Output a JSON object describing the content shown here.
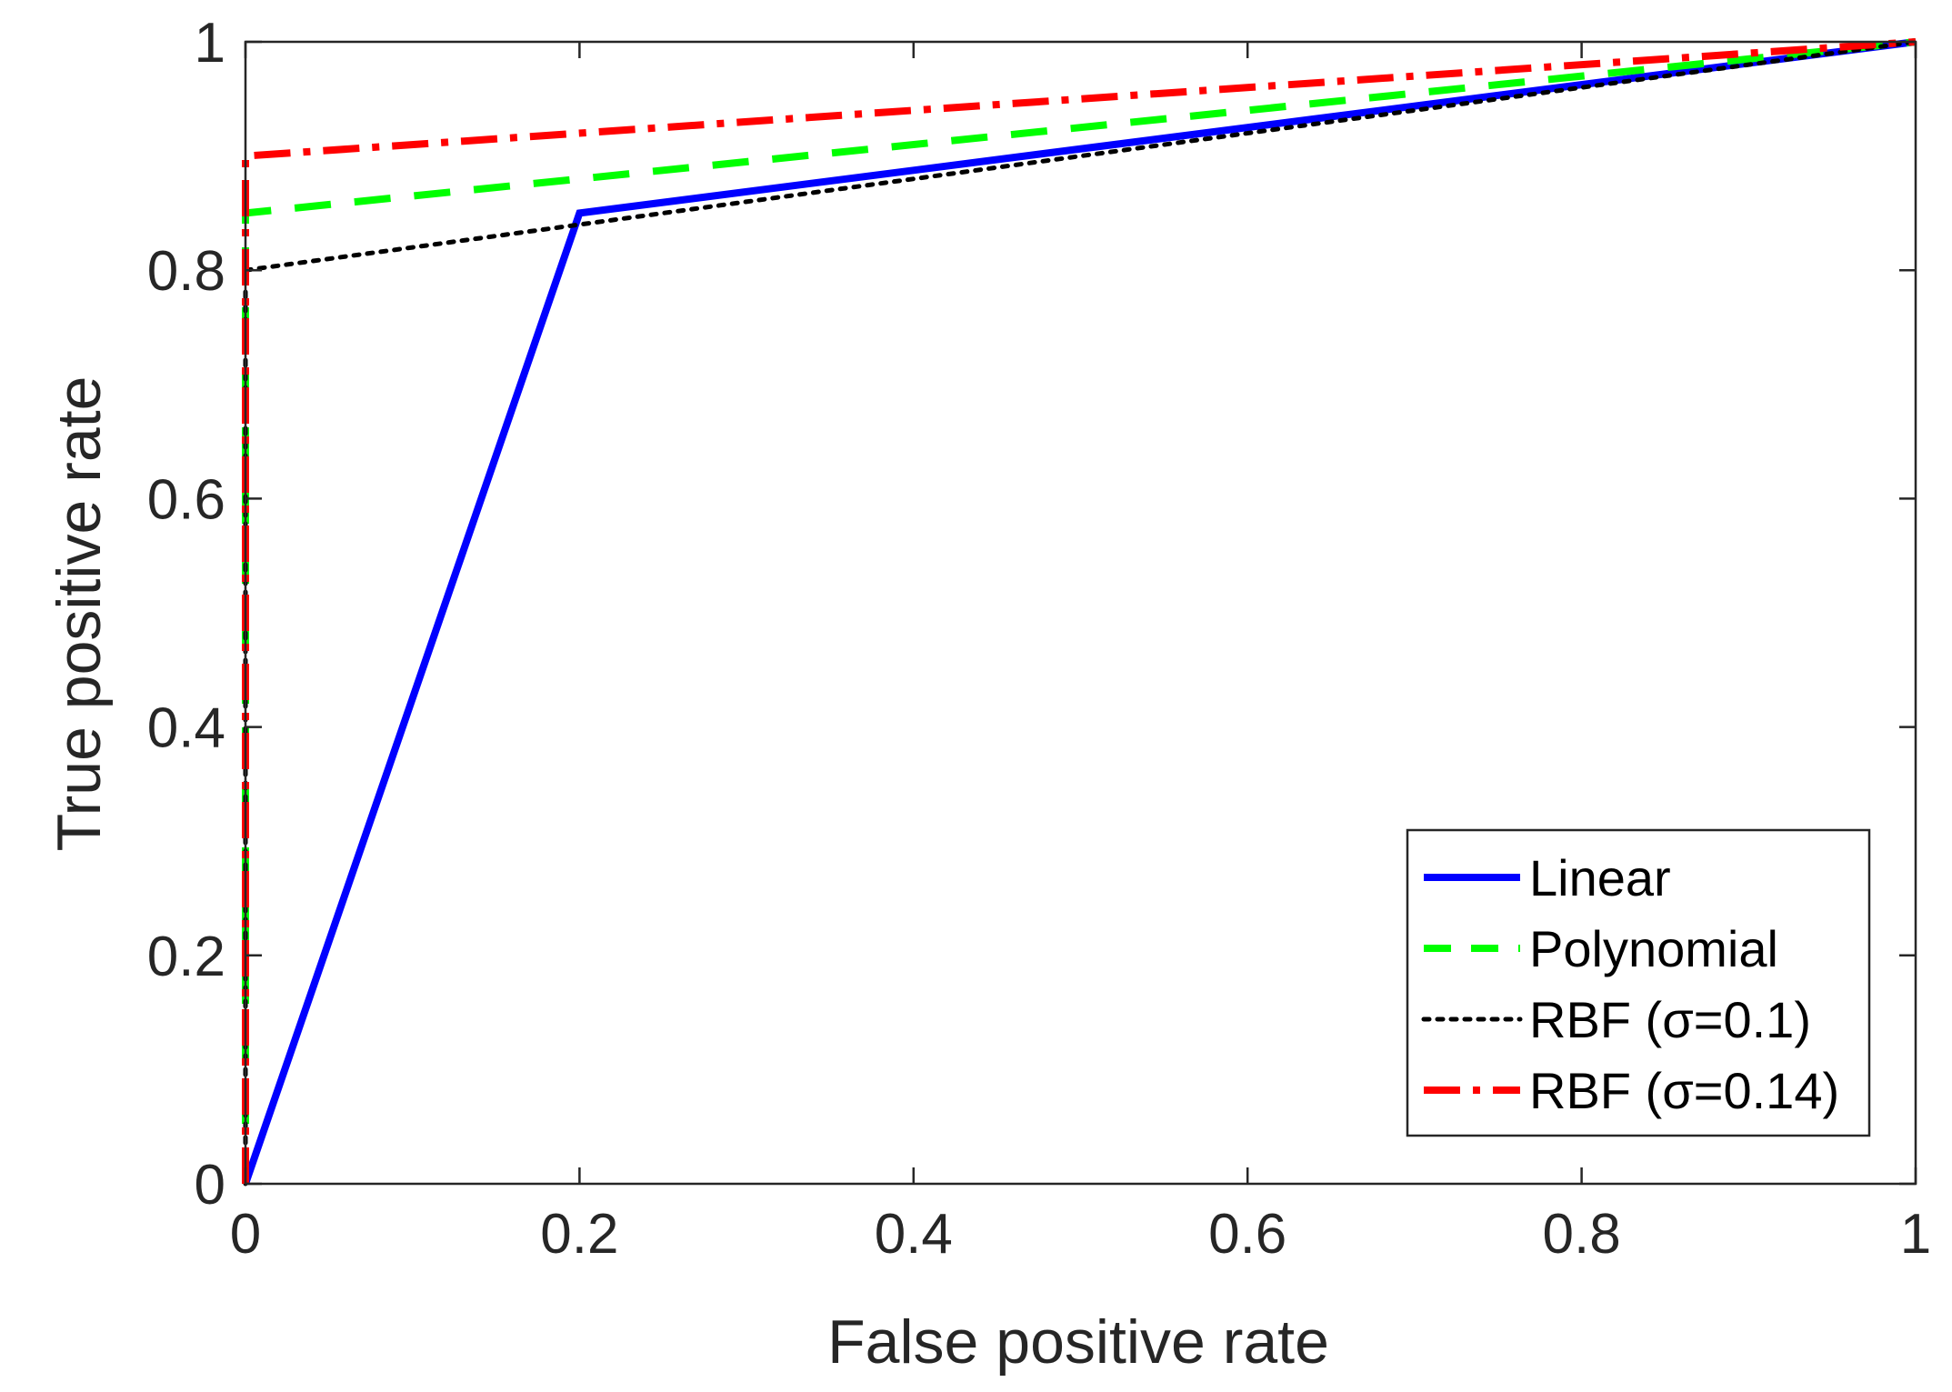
{
  "chart_data": {
    "type": "line",
    "title": "",
    "xlabel": "False positive rate",
    "ylabel": "True positive rate",
    "xlim": [
      0,
      1
    ],
    "ylim": [
      0,
      1
    ],
    "xticks": [
      0,
      0.2,
      0.4,
      0.6,
      0.8,
      1
    ],
    "yticks": [
      0,
      0.2,
      0.4,
      0.6,
      0.8,
      1
    ],
    "xtick_labels": [
      "0",
      "0.2",
      "0.4",
      "0.6",
      "0.8",
      "1"
    ],
    "ytick_labels": [
      "0",
      "0.2",
      "0.4",
      "0.6",
      "0.8",
      "1"
    ],
    "grid": false,
    "legend_position": "bottom-right",
    "series": [
      {
        "name": "Linear",
        "legend_label": "Linear",
        "color": "#0000ff",
        "style": "solid",
        "x": [
          0,
          0.2,
          1
        ],
        "y": [
          0,
          0.85,
          1
        ]
      },
      {
        "name": "Polynomial",
        "legend_label": "Polynomial",
        "color": "#00ff00",
        "style": "dashed",
        "x": [
          0,
          0,
          1
        ],
        "y": [
          0,
          0.85,
          1
        ]
      },
      {
        "name": "RBF (σ=0.1)",
        "legend_label": "RBF (σ=0.1)",
        "color": "#000000",
        "style": "dotted",
        "x": [
          0,
          0,
          0.2,
          1
        ],
        "y": [
          0,
          0.8,
          0.84,
          1
        ]
      },
      {
        "name": "RBF (σ=0.14)",
        "legend_label": "RBF (σ=0.14)",
        "color": "#ff0000",
        "style": "dashdot",
        "x": [
          0,
          0,
          1
        ],
        "y": [
          0,
          0.9,
          1
        ]
      }
    ]
  }
}
